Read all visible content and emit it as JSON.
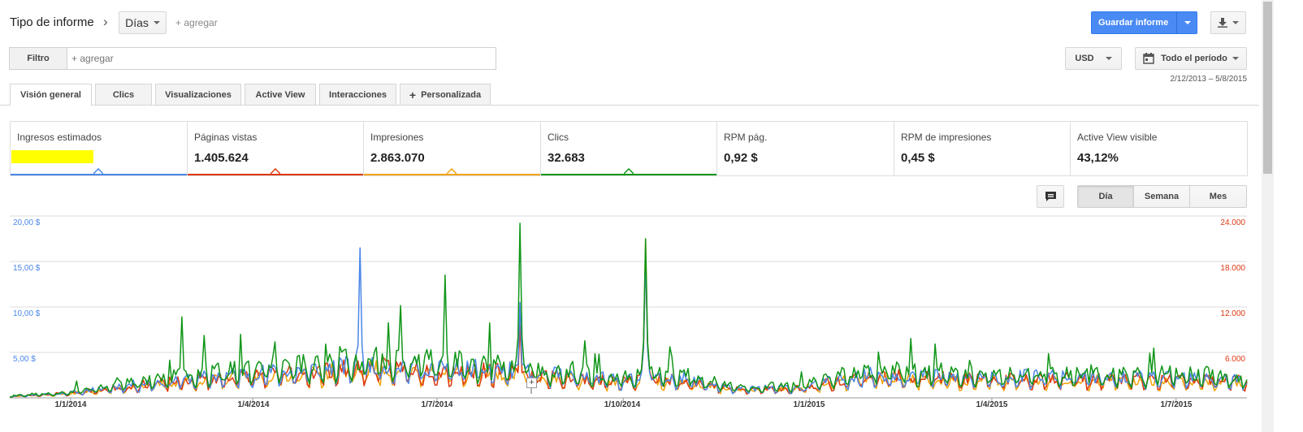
{
  "toolbar": {
    "report_type_label": "Tipo de informe",
    "breadcrumb_sep": "›",
    "dimension_value": "Días",
    "add_label": "+ agregar",
    "save_button": "Guardar informe",
    "download_icon": "download-icon"
  },
  "filter": {
    "filter_button": "Filtro",
    "placeholder": "+ agregar"
  },
  "currency": "USD",
  "date_range": {
    "label": "Todo el período",
    "range": "2/12/2013 – 5/8/2015",
    "icon": "calendar-icon"
  },
  "tabs": [
    {
      "label": "Visión general",
      "active": true
    },
    {
      "label": "Clics"
    },
    {
      "label": "Visualizaciones"
    },
    {
      "label": "Active View"
    },
    {
      "label": "Interacciones"
    },
    {
      "label": "Personalizada",
      "icon": "plus-icon"
    }
  ],
  "metrics": [
    {
      "label": "Ingresos estimados",
      "value": "",
      "redacted": true,
      "color": "#4a86e8"
    },
    {
      "label": "Páginas vistas",
      "value": "1.405.624",
      "color": "#dc3912"
    },
    {
      "label": "Impresiones",
      "value": "2.863.070",
      "color": "#f1a30b"
    },
    {
      "label": "Clics",
      "value": "32.683",
      "color": "#109618"
    },
    {
      "label": "RPM pág.",
      "value": "0,92 $"
    },
    {
      "label": "RPM de impresiones",
      "value": "0,45 $"
    },
    {
      "label": "Active View visible",
      "value": "43,12%"
    }
  ],
  "granularity": {
    "buttons": [
      "Día",
      "Semana",
      "Mes"
    ],
    "active": "Día",
    "annotation_icon": "comment-icon"
  },
  "chart_data": {
    "type": "line",
    "x": [
      "1/1/2014",
      "1/4/2014",
      "1/7/2014",
      "1/10/2014",
      "1/1/2015",
      "1/4/2015",
      "1/7/2015"
    ],
    "x_range": [
      "2/12/2013",
      "5/8/2015"
    ],
    "y_left": {
      "ticks": [
        "5,00 $",
        "10,00 $",
        "15,00 $",
        "20,00 $"
      ],
      "range": [
        0,
        20
      ]
    },
    "y_right": {
      "ticks": [
        "6.000",
        "12.000",
        "18.000",
        "24.000"
      ],
      "range": [
        0,
        24000
      ]
    },
    "grid": true,
    "series": [
      {
        "color": "#4a86e8",
        "axis": "left",
        "peaks": [
          {
            "x": "2014-05-24",
            "y": 16.5
          },
          {
            "x": "2014-10-12",
            "y": 15.5
          },
          {
            "x": "2014-08-11",
            "y": 10.5
          }
        ]
      },
      {
        "color": "#dc3912",
        "axis": "right",
        "peaks": [
          {
            "x": "2014-10-12",
            "y": 19000
          },
          {
            "x": "2014-08-11",
            "y": 9500
          }
        ]
      },
      {
        "color": "#f1a30b",
        "axis": "right",
        "peaks": [
          {
            "x": "2014-10-12",
            "y": 21000
          },
          {
            "x": "2014-08-11",
            "y": 10000
          }
        ]
      },
      {
        "color": "#109618",
        "axis": "left",
        "peaks": [
          {
            "x": "2014-08-11",
            "y": 19.2
          },
          {
            "x": "2014-10-12",
            "y": 17.5
          },
          {
            "x": "2014-07-05",
            "y": 13.5
          },
          {
            "x": "2014-02-25",
            "y": 8.9
          }
        ]
      }
    ]
  }
}
